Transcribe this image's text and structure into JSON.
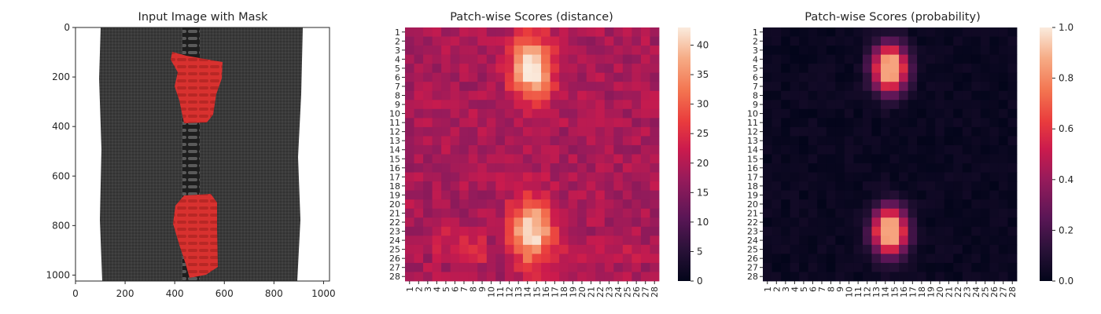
{
  "chart_data": [
    {
      "type": "image",
      "title": "Input Image with Mask",
      "xticks": [
        0,
        200,
        400,
        600,
        800,
        1000
      ],
      "yticks": [
        0,
        200,
        400,
        600,
        800,
        1000
      ],
      "xlim": [
        0,
        1024
      ],
      "ylim": [
        1024,
        0
      ],
      "colors": {
        "fabric": "#3a3a3a",
        "mask": "#d8312f",
        "background": "#ffffff"
      }
    },
    {
      "type": "heatmap",
      "title": "Patch-wise Scores (distance)",
      "rows": 28,
      "cols": 28,
      "tick_labels": [
        "1",
        "2",
        "3",
        "4",
        "5",
        "6",
        "7",
        "8",
        "9",
        "10",
        "11",
        "12",
        "13",
        "14",
        "15",
        "16",
        "17",
        "18",
        "19",
        "20",
        "21",
        "22",
        "23",
        "24",
        "25",
        "26",
        "27",
        "28"
      ],
      "vmin": 0,
      "vmax": 43,
      "colorbar_ticks": [
        0,
        5,
        10,
        15,
        20,
        25,
        30,
        35,
        40
      ],
      "colormap": "rocket",
      "baseline": 19,
      "hotspots": [
        {
          "row": 5,
          "col": 14.5,
          "peak": 43
        },
        {
          "row": 23,
          "col": 14.5,
          "peak": 43
        }
      ]
    },
    {
      "type": "heatmap",
      "title": "Patch-wise Scores (probability)",
      "rows": 28,
      "cols": 28,
      "tick_labels": [
        "1",
        "2",
        "3",
        "4",
        "5",
        "6",
        "7",
        "8",
        "9",
        "10",
        "11",
        "12",
        "13",
        "14",
        "15",
        "16",
        "17",
        "18",
        "19",
        "20",
        "21",
        "22",
        "23",
        "24",
        "25",
        "26",
        "27",
        "28"
      ],
      "vmin": 0,
      "vmax": 1,
      "colorbar_ticks": [
        "0.0",
        "0.2",
        "0.4",
        "0.6",
        "0.8",
        "1.0"
      ],
      "colormap": "rocket",
      "baseline": 0.0,
      "hotspots": [
        {
          "row": 5,
          "col": 14.5,
          "peak": 0.85
        },
        {
          "row": 23,
          "col": 14.5,
          "peak": 0.85
        }
      ]
    }
  ]
}
